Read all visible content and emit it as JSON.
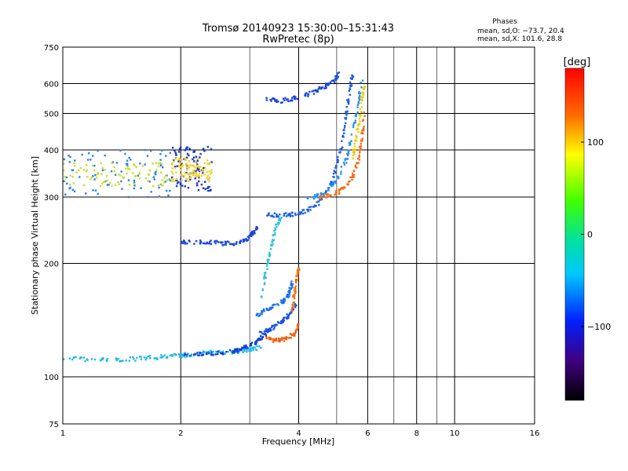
{
  "chart_data": {
    "type": "scatter",
    "title": "Tromsø 20140923 15:30:00–15:31:43",
    "subtitle": "RwPretec (8p)",
    "xlabel": "Frequency [MHz]",
    "ylabel": "Stationary phase Virtual Height [km]",
    "x_scale": "log",
    "y_scale": "log",
    "xlim": [
      1,
      16
    ],
    "ylim": [
      75,
      750
    ],
    "x_ticks": [
      1,
      2,
      4,
      6,
      8,
      10,
      16
    ],
    "x_tick_labels": [
      "1",
      "2",
      "4",
      "6",
      "8",
      "10",
      "16"
    ],
    "x_minor_ticks": [
      3,
      5,
      7,
      9
    ],
    "y_ticks": [
      75,
      100,
      200,
      300,
      400,
      500,
      600,
      750
    ],
    "y_tick_labels": [
      "75",
      "100",
      "200",
      "300",
      "400",
      "500",
      "600",
      "750"
    ],
    "grid": true,
    "phase_stats": {
      "title": "Phases",
      "o_line": "mean, sd,O: −73.7, 20.4",
      "x_line": "mean, sd,X: 101.6, 28.8"
    },
    "colorbar": {
      "label": "[deg]",
      "range": [
        -180,
        180
      ],
      "ticks": [
        100,
        0,
        -100
      ],
      "tick_labels": [
        "100",
        "0",
        "−100"
      ],
      "colormap": "rainbow"
    },
    "traces": [
      {
        "f": [
          1.0,
          1.2,
          1.4,
          1.6,
          1.8,
          2.0,
          2.2,
          2.4,
          2.6,
          2.8,
          3.0,
          3.2
        ],
        "h": [
          112,
          111,
          111,
          112,
          113,
          114,
          115,
          116,
          116,
          117,
          118,
          120
        ],
        "phase": -60,
        "color": "#20b8e8"
      },
      {
        "f": [
          2.0,
          2.3,
          2.6,
          2.8,
          3.0,
          3.15,
          3.3
        ],
        "h": [
          114,
          115,
          116,
          118,
          121,
          125,
          130
        ],
        "phase": -110,
        "color": "#1040d0"
      },
      {
        "f": [
          3.3,
          3.5,
          3.7,
          3.9,
          4.0
        ],
        "h": [
          126,
          125,
          126,
          130,
          138
        ],
        "phase": 120,
        "color": "#f06010"
      },
      {
        "f": [
          3.2,
          3.35,
          3.5,
          3.65,
          3.8,
          3.95
        ],
        "h": [
          131,
          133,
          137,
          141,
          147,
          158
        ],
        "phase": -105,
        "color": "#1850e0"
      },
      {
        "f": [
          3.1,
          3.3,
          3.5,
          3.7,
          3.8,
          3.85
        ],
        "h": [
          145,
          150,
          155,
          160,
          168,
          178
        ],
        "phase": -90,
        "color": "#2070e8"
      },
      {
        "f": [
          3.85,
          3.9,
          3.95,
          4.0
        ],
        "h": [
          150,
          165,
          180,
          195
        ],
        "phase": 130,
        "color": "#f07010"
      },
      {
        "f": [
          2.0,
          2.2,
          2.4,
          2.6,
          2.8,
          2.95,
          3.05,
          3.15
        ],
        "h": [
          228,
          228,
          227,
          226,
          226,
          232,
          240,
          248
        ],
        "phase": -100,
        "color": "#1848d8"
      },
      {
        "f": [
          3.2,
          3.3,
          3.4,
          3.5,
          3.6
        ],
        "h": [
          160,
          190,
          220,
          250,
          265
        ],
        "phase": -50,
        "color": "#30c0e0"
      },
      {
        "f": [
          3.3,
          3.6,
          3.9,
          4.2,
          4.5,
          4.8,
          5.0,
          5.2,
          5.3,
          5.4,
          5.5
        ],
        "h": [
          270,
          268,
          270,
          276,
          290,
          320,
          360,
          430,
          500,
          580,
          640
        ],
        "phase": -95,
        "color": "#2060e8"
      },
      {
        "f": [
          4.2,
          4.6,
          5.0,
          5.3,
          5.5,
          5.7,
          5.8
        ],
        "h": [
          295,
          305,
          330,
          380,
          450,
          540,
          620
        ],
        "phase": -75,
        "color": "#2890e8"
      },
      {
        "f": [
          4.5,
          4.9,
          5.2,
          5.5,
          5.7,
          5.8,
          5.9
        ],
        "h": [
          300,
          305,
          315,
          340,
          380,
          430,
          500
        ],
        "phase": 130,
        "color": "#f07018"
      },
      {
        "f": [
          5.5,
          5.6,
          5.7,
          5.8,
          5.9
        ],
        "h": [
          380,
          420,
          470,
          540,
          600
        ],
        "phase": 70,
        "color": "#e8d018"
      },
      {
        "f": [
          3.3,
          3.6,
          3.9,
          4.3,
          4.6,
          4.9,
          5.1
        ],
        "h": [
          545,
          540,
          548,
          565,
          585,
          610,
          640
        ],
        "phase": -100,
        "color": "#1848d8"
      }
    ],
    "clusters": [
      {
        "f_range": [
          1.0,
          1.9
        ],
        "h_range": [
          300,
          400
        ],
        "phase": -60,
        "color": "#2880e8"
      },
      {
        "f_range": [
          1.0,
          1.9
        ],
        "h_range": [
          320,
          370
        ],
        "phase": 40,
        "color": "#c8e030"
      },
      {
        "f_range": [
          1.9,
          2.4
        ],
        "h_range": [
          310,
          410
        ],
        "phase": -110,
        "color": "#1838c8"
      },
      {
        "f_range": [
          1.9,
          2.4
        ],
        "h_range": [
          330,
          380
        ],
        "phase": 80,
        "color": "#f0d020"
      }
    ]
  }
}
